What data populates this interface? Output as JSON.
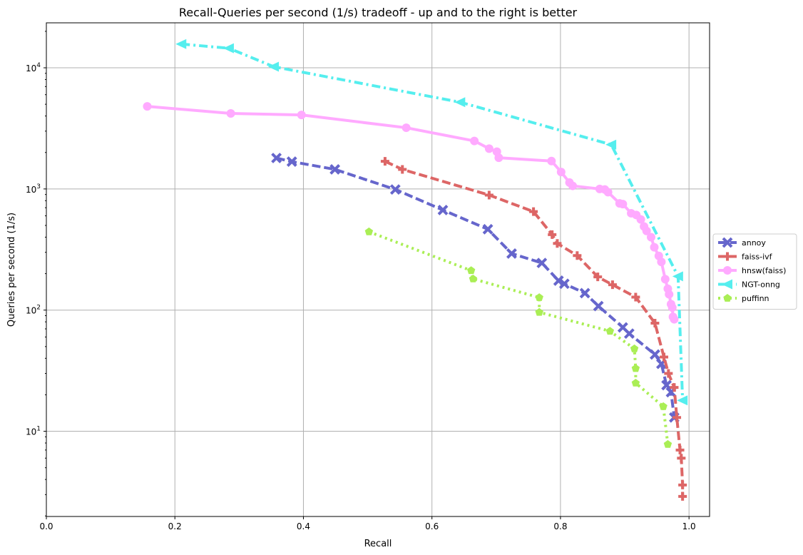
{
  "chart_data": {
    "type": "line",
    "title": "Recall-Queries per second (1/s) tradeoff - up and to the right is better",
    "xlabel": "Recall",
    "ylabel": "Queries per second (1/s)",
    "xlim": [
      0.0,
      1.032
    ],
    "ylim": [
      1.98,
      23500
    ],
    "yscale": "log",
    "grid": true,
    "legend_position": "right-outside",
    "x_ticks": [
      {
        "value": 0.0,
        "label": "0.0"
      },
      {
        "value": 0.2,
        "label": "0.2"
      },
      {
        "value": 0.4,
        "label": "0.4"
      },
      {
        "value": 0.6,
        "label": "0.6"
      },
      {
        "value": 0.8,
        "label": "0.8"
      },
      {
        "value": 1.0,
        "label": "1.0"
      }
    ],
    "y_ticks": [
      {
        "value": 10,
        "base": "10",
        "exp": "1"
      },
      {
        "value": 100,
        "base": "10",
        "exp": "2"
      },
      {
        "value": 1000,
        "base": "10",
        "exp": "3"
      },
      {
        "value": 10000,
        "base": "10",
        "exp": "4"
      }
    ],
    "series": [
      {
        "name": "annoy",
        "color": "#6666cc",
        "dash": "dashed",
        "marker": "x",
        "points": [
          [
            0.358,
            1800
          ],
          [
            0.382,
            1680
          ],
          [
            0.449,
            1450
          ],
          [
            0.543,
            990
          ],
          [
            0.617,
            670
          ],
          [
            0.687,
            465
          ],
          [
            0.724,
            293
          ],
          [
            0.771,
            245
          ],
          [
            0.797,
            175
          ],
          [
            0.806,
            165
          ],
          [
            0.838,
            138
          ],
          [
            0.859,
            108
          ],
          [
            0.897,
            72
          ],
          [
            0.907,
            64
          ],
          [
            0.947,
            43
          ],
          [
            0.957,
            36
          ],
          [
            0.965,
            24
          ],
          [
            0.972,
            21
          ],
          [
            0.977,
            13
          ]
        ]
      },
      {
        "name": "faiss-ivf",
        "color": "#dd6666",
        "dash": "dashed",
        "marker": "plus",
        "points": [
          [
            0.527,
            1690
          ],
          [
            0.554,
            1450
          ],
          [
            0.689,
            890
          ],
          [
            0.758,
            650
          ],
          [
            0.787,
            420
          ],
          [
            0.795,
            355
          ],
          [
            0.826,
            282
          ],
          [
            0.858,
            188
          ],
          [
            0.881,
            162
          ],
          [
            0.917,
            128
          ],
          [
            0.947,
            78
          ],
          [
            0.961,
            41
          ],
          [
            0.968,
            30
          ],
          [
            0.977,
            23
          ],
          [
            0.981,
            13
          ],
          [
            0.986,
            7
          ],
          [
            0.988,
            6
          ],
          [
            0.99,
            3.6
          ],
          [
            0.99,
            2.9
          ]
        ]
      },
      {
        "name": "hnsw(faiss)",
        "color": "#ffaaff",
        "dash": "solid",
        "marker": "circle",
        "points": [
          [
            0.157,
            4800
          ],
          [
            0.287,
            4200
          ],
          [
            0.397,
            4080
          ],
          [
            0.56,
            3200
          ],
          [
            0.666,
            2490
          ],
          [
            0.689,
            2150
          ],
          [
            0.701,
            2030
          ],
          [
            0.704,
            1810
          ],
          [
            0.786,
            1700
          ],
          [
            0.801,
            1380
          ],
          [
            0.814,
            1130
          ],
          [
            0.819,
            1060
          ],
          [
            0.861,
            1000
          ],
          [
            0.869,
            990
          ],
          [
            0.874,
            940
          ],
          [
            0.892,
            760
          ],
          [
            0.897,
            750
          ],
          [
            0.91,
            630
          ],
          [
            0.918,
            610
          ],
          [
            0.925,
            560
          ],
          [
            0.93,
            490
          ],
          [
            0.934,
            450
          ],
          [
            0.941,
            400
          ],
          [
            0.946,
            330
          ],
          [
            0.953,
            280
          ],
          [
            0.957,
            250
          ],
          [
            0.963,
            180
          ],
          [
            0.967,
            150
          ],
          [
            0.969,
            135
          ],
          [
            0.972,
            112
          ],
          [
            0.974,
            105
          ],
          [
            0.975,
            88
          ],
          [
            0.977,
            84
          ]
        ]
      },
      {
        "name": "NGT-onng",
        "color": "#55eeee",
        "dash": "dashdot",
        "marker": "triangle-left",
        "points": [
          [
            0.21,
            15700
          ],
          [
            0.284,
            14500
          ],
          [
            0.354,
            10200
          ],
          [
            0.644,
            5200
          ],
          [
            0.879,
            2320
          ],
          [
            0.983,
            190
          ],
          [
            0.99,
            18
          ]
        ]
      },
      {
        "name": "puffinn",
        "color": "#aaee55",
        "dash": "dotted",
        "marker": "pentagon",
        "points": [
          [
            0.502,
            443
          ],
          [
            0.661,
            212
          ],
          [
            0.664,
            181
          ],
          [
            0.767,
            127
          ],
          [
            0.767,
            96
          ],
          [
            0.877,
            67
          ],
          [
            0.915,
            48
          ],
          [
            0.917,
            33
          ],
          [
            0.917,
            25
          ],
          [
            0.96,
            16
          ],
          [
            0.967,
            7.8
          ]
        ]
      }
    ]
  }
}
